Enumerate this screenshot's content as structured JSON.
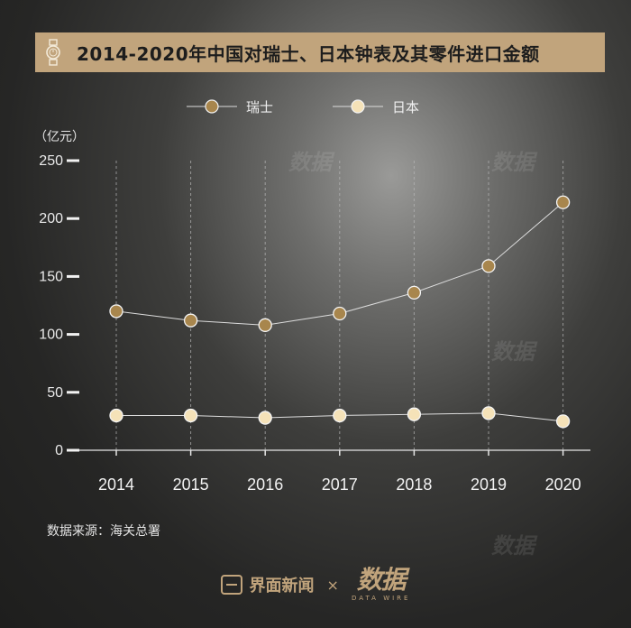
{
  "title": "2014-2020年中国对瑞士、日本钟表及其零件进口金额",
  "unit": "（亿元）",
  "source": "数据来源：海关总署",
  "footer": {
    "brand": "界面新闻",
    "times": "×",
    "dw_main": "数据",
    "dw_sub": "DATA WIRE"
  },
  "colors": {
    "title_band": "#c1a47c",
    "swiss": "#a8864d",
    "japan": "#f5e2b8",
    "line": "#dcdcdc"
  },
  "chart_data": {
    "type": "line",
    "categories": [
      "2014",
      "2015",
      "2016",
      "2017",
      "2018",
      "2019",
      "2020"
    ],
    "ylabel": "（亿元）",
    "ylim": [
      0,
      250
    ],
    "yticks": [
      0,
      50,
      100,
      150,
      200,
      250
    ],
    "grid": "vertical dashed",
    "legend": "top-center",
    "series": [
      {
        "name": "瑞士",
        "values": [
          120,
          112,
          108,
          118,
          136,
          159,
          214
        ]
      },
      {
        "name": "日本",
        "values": [
          30,
          30,
          28,
          30,
          31,
          32,
          25
        ]
      }
    ]
  }
}
